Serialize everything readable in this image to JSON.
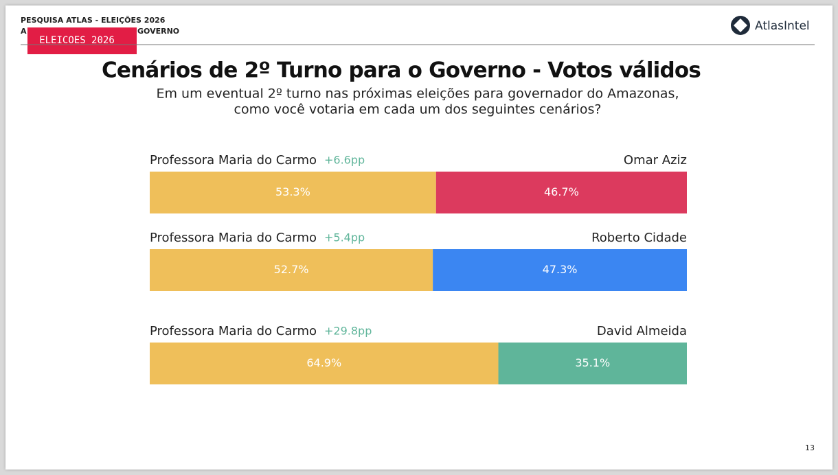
{
  "header": {
    "line1": "PESQUISA ATLAS - ELEIÇÕES 2026",
    "line2_start": "A",
    "line2_end": "GOVERNO",
    "badge": "ELEICOES 2026",
    "logo": "AtlasIntel"
  },
  "title": "Cenários de 2º Turno para o Governo - Votos válidos",
  "subtitle": [
    "Em um eventual 2º turno nas próximas eleições para governador do Amazonas,",
    "como você votaria em cada um dos seguintes cenários?"
  ],
  "scenarios": [
    {
      "left": "Professora Maria do Carmo",
      "margin": "+6.6pp",
      "right": "Omar Aziz",
      "values": [
        53.3,
        46.7
      ],
      "value_labels": [
        "53.3%",
        "46.7%"
      ],
      "colors": [
        "#efbf5a",
        "#dc3a5e"
      ]
    },
    {
      "left": "Professora Maria do Carmo",
      "margin": "+5.4pp",
      "right": "Roberto Cidade",
      "values": [
        52.7,
        47.3
      ],
      "value_labels": [
        "52.7%",
        "47.3%"
      ],
      "colors": [
        "#efbf5a",
        "#3b86f2"
      ]
    },
    {
      "left": "Professora Maria do Carmo",
      "margin": "+29.8pp",
      "right": "David Almeida",
      "values": [
        64.9,
        35.1
      ],
      "value_labels": [
        "64.9%",
        "35.1%"
      ],
      "colors": [
        "#efbf5a",
        "#5fb59a"
      ]
    }
  ],
  "page_number": "13"
}
